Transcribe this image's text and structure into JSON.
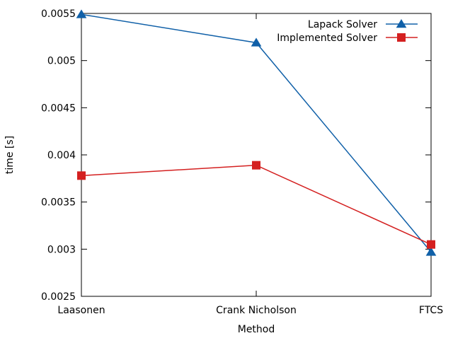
{
  "chart_data": {
    "type": "line",
    "title": "",
    "xlabel": "Method",
    "ylabel": "time [s]",
    "categories": [
      "Laasonen",
      "Crank Nicholson",
      "FTCS"
    ],
    "ylim": [
      0.0025,
      0.0055
    ],
    "yticks": [
      "0.0025",
      "0.003",
      "0.0035",
      "0.004",
      "0.0045",
      "0.005",
      "0.0055"
    ],
    "grid": false,
    "legend_position": "top-right",
    "series": [
      {
        "name": "Lapack Solver",
        "values": [
          0.00549,
          0.00519,
          0.00297
        ],
        "color": "#1060a8",
        "marker": "triangle"
      },
      {
        "name": "Implemented Solver",
        "values": [
          0.00378,
          0.00389,
          0.00305
        ],
        "color": "#d42020",
        "marker": "square"
      }
    ]
  }
}
